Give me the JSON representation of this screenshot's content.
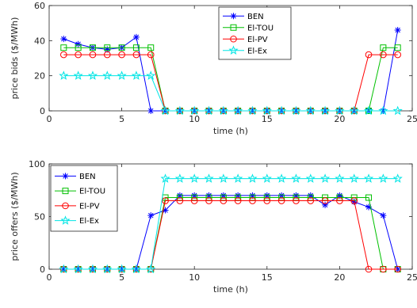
{
  "chart_data": [
    {
      "type": "line",
      "title": "",
      "xlabel": "time (h)",
      "ylabel": "price bids ($/MWh)",
      "xlim": [
        0,
        25
      ],
      "ylim": [
        0,
        60
      ],
      "xticks": [
        0,
        5,
        10,
        15,
        20,
        25
      ],
      "yticks": [
        0,
        20,
        40,
        60
      ],
      "grid": false,
      "legend_position": "top-center",
      "x": [
        1,
        2,
        3,
        4,
        5,
        6,
        7,
        8,
        9,
        10,
        11,
        12,
        13,
        14,
        15,
        16,
        17,
        18,
        19,
        20,
        21,
        22,
        23,
        24
      ],
      "series": [
        {
          "name": "BEN",
          "color": "#0000ff",
          "marker": "asterisk",
          "values": [
            41,
            38,
            36,
            35,
            36,
            42,
            0,
            0,
            0,
            0,
            0,
            0,
            0,
            0,
            0,
            0,
            0,
            0,
            0,
            0,
            0,
            0,
            0,
            46
          ]
        },
        {
          "name": "El-TOU",
          "color": "#00c000",
          "marker": "square",
          "values": [
            36,
            36,
            36,
            36,
            36,
            36,
            36,
            0,
            0,
            0,
            0,
            0,
            0,
            0,
            0,
            0,
            0,
            0,
            0,
            0,
            0,
            0,
            36,
            36
          ]
        },
        {
          "name": "El-PV",
          "color": "#ff0000",
          "marker": "circle",
          "values": [
            32,
            32,
            32,
            32,
            32,
            32,
            32,
            0,
            0,
            0,
            0,
            0,
            0,
            0,
            0,
            0,
            0,
            0,
            0,
            0,
            0,
            32,
            32,
            32
          ]
        },
        {
          "name": "El-Ex",
          "color": "#00e5e5",
          "marker": "star",
          "values": [
            20,
            20,
            20,
            20,
            20,
            20,
            20,
            0,
            0,
            0,
            0,
            0,
            0,
            0,
            0,
            0,
            0,
            0,
            0,
            0,
            0,
            0,
            0,
            0
          ]
        }
      ]
    },
    {
      "type": "line",
      "title": "",
      "xlabel": "time (h)",
      "ylabel": "price offers ($/MWh)",
      "xlim": [
        0,
        25
      ],
      "ylim": [
        0,
        100
      ],
      "xticks": [
        0,
        5,
        10,
        15,
        20,
        25
      ],
      "yticks": [
        0,
        50,
        100
      ],
      "grid": false,
      "legend_position": "top-left",
      "x": [
        1,
        2,
        3,
        4,
        5,
        6,
        7,
        8,
        9,
        10,
        11,
        12,
        13,
        14,
        15,
        16,
        17,
        18,
        19,
        20,
        21,
        22,
        23,
        24
      ],
      "series": [
        {
          "name": "BEN",
          "color": "#0000ff",
          "marker": "asterisk",
          "values": [
            0,
            0,
            0,
            0,
            0,
            0,
            51,
            56,
            70,
            70,
            70,
            70,
            70,
            70,
            70,
            70,
            70,
            70,
            61,
            70,
            64,
            59,
            51,
            0
          ]
        },
        {
          "name": "El-TOU",
          "color": "#00c000",
          "marker": "square",
          "values": [
            0,
            0,
            0,
            0,
            0,
            0,
            0,
            68,
            68,
            68,
            68,
            68,
            68,
            68,
            68,
            68,
            68,
            68,
            68,
            68,
            68,
            68,
            0,
            0
          ]
        },
        {
          "name": "El-PV",
          "color": "#ff0000",
          "marker": "circle",
          "values": [
            0,
            0,
            0,
            0,
            0,
            0,
            0,
            65,
            65,
            65,
            65,
            65,
            65,
            65,
            65,
            65,
            65,
            65,
            65,
            65,
            65,
            0,
            0,
            0
          ]
        },
        {
          "name": "El-Ex",
          "color": "#00e5e5",
          "marker": "star",
          "values": [
            0,
            0,
            0,
            0,
            0,
            0,
            0,
            86,
            86,
            86,
            86,
            86,
            86,
            86,
            86,
            86,
            86,
            86,
            86,
            86,
            86,
            86,
            86,
            86
          ]
        }
      ]
    }
  ]
}
